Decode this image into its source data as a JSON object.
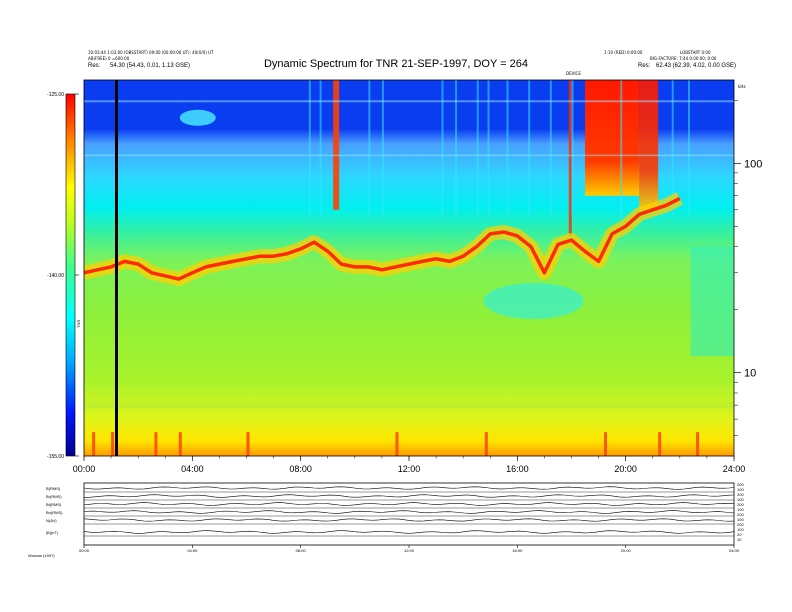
{
  "header": {
    "title": "Dynamic Spectrum for TNR 21-SEP-1997, DOY = 264",
    "left_line1": "10:03:44 1:03:00 (OBSSTART) 09:00 (00:00:00 UT): 40(0/0) UT",
    "left_line2": "AB(FREE) 0 =600:00",
    "left_res_label": "Res:",
    "left_res_value": "54.30 (54.43, 0.01, 1.13 GSE)",
    "right_line1": "1:10 (RED) 0:00:00",
    "right_line2": "LOBSTART 0:00",
    "right_line3": "BIG-FACTURE: 7:44 0:00:00; 0:00",
    "right_res_label": "Res:",
    "right_res_value": "62.43 (62.39, 4.02, 0.00 GSE)",
    "top_center_small": "DEVICE",
    "corner_right": "kHz"
  },
  "colorbar": {
    "ticks": [
      "-125.00",
      "-140.00",
      "-155.00"
    ],
    "label": "TNR"
  },
  "chart_data": {
    "type": "heatmap",
    "title": "Dynamic Spectrum for TNR 21-SEP-1997, DOY = 264",
    "x_ticks": [
      "00:00",
      "04:00",
      "08:00",
      "12:00",
      "16:00",
      "20:00",
      "24:00"
    ],
    "xlim": [
      0,
      24
    ],
    "y_scale": "log",
    "y_ticks": [
      10,
      100
    ],
    "ylim": [
      4,
      250
    ],
    "colorbar_range": [
      -155,
      -125
    ],
    "colorbar_ticks": [
      -125,
      -140,
      -155
    ],
    "colormap": [
      "#0000c8",
      "#0a2cf0",
      "#00dcff",
      "#22e6c8",
      "#9df23a",
      "#ffff00",
      "#ff9a00",
      "#ff0000"
    ],
    "plasma_line": {
      "hours": [
        0,
        0.5,
        1,
        1.5,
        2,
        2.5,
        3,
        3.5,
        4,
        4.5,
        5,
        5.5,
        6,
        6.5,
        7,
        7.5,
        8,
        8.5,
        9,
        9.5,
        10,
        10.5,
        11,
        11.5,
        12,
        12.5,
        13,
        13.5,
        14,
        14.5,
        15,
        15.5,
        16,
        16.5,
        17,
        17.5,
        18,
        18.5,
        19,
        19.5,
        20,
        20.5,
        21,
        21.5,
        22
      ],
      "khz": [
        30,
        31,
        32,
        34,
        33,
        30,
        29,
        28,
        30,
        32,
        33,
        34,
        35,
        36,
        36,
        37,
        39,
        42,
        38,
        33,
        32,
        32,
        31,
        32,
        33,
        34,
        35,
        34,
        36,
        40,
        46,
        47,
        45,
        40,
        30,
        41,
        43,
        38,
        34,
        46,
        50,
        57,
        60,
        63,
        68
      ]
    },
    "marker_hour": 1.2
  },
  "bottom_panel": {
    "row_labels": [
      "B(RMS)",
      "Br(RMS)",
      "Bt(RMS)",
      "Bn(RMS)",
      "N(AV)",
      "|B|(nT)"
    ],
    "right_ticks": [
      "200",
      "100",
      "200",
      "100",
      "200",
      "100",
      "200",
      "100",
      "200",
      "100",
      "20",
      "10"
    ],
    "x_ticks": [
      "00:00",
      "04:00",
      "08:00",
      "12:00",
      "16:00",
      "20:00",
      "24:00"
    ],
    "footnote": "Wolzow (1997)"
  }
}
